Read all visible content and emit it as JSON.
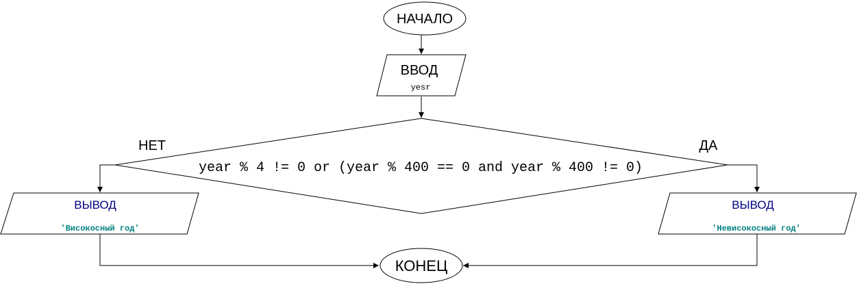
{
  "nodes": {
    "start": {
      "label": "НАЧАЛО"
    },
    "input": {
      "label": "ВВОД",
      "variable": "yesr"
    },
    "condition": {
      "expression": "year % 4 != 0 or (year % 400 == 0 and year % 400 != 0)"
    },
    "output_left": {
      "label": "ВЫВОД",
      "value": "'Високосный год'"
    },
    "output_right": {
      "label": "ВЫВОД",
      "value": "'Невисокосный год'"
    },
    "end": {
      "label": "КОНЕЦ"
    }
  },
  "branches": {
    "no": "НЕТ",
    "yes": "ДА"
  },
  "colors": {
    "stroke": "#000000",
    "output_label": "#000080",
    "output_value": "#008080"
  }
}
